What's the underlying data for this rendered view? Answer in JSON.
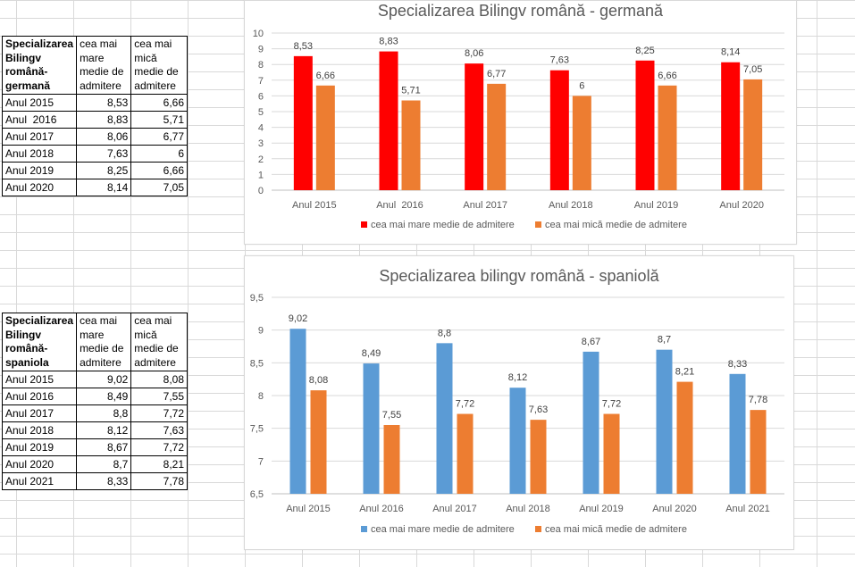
{
  "table_german": {
    "headers": [
      "Specializarea Bilingv română-germană",
      "cea mai mare medie de admitere",
      "cea mai mică medie de admitere"
    ],
    "rows": [
      [
        "Anul 2015",
        "8,53",
        "6,66"
      ],
      [
        "Anul  2016",
        "8,83",
        "5,71"
      ],
      [
        "Anul 2017",
        "8,06",
        "6,77"
      ],
      [
        "Anul 2018",
        "7,63",
        "6"
      ],
      [
        "Anul 2019",
        "8,25",
        "6,66"
      ],
      [
        "Anul 2020",
        "8,14",
        "7,05"
      ]
    ]
  },
  "table_spanish": {
    "headers": [
      "Specializarea Bilingv română-spaniola",
      "cea mai mare medie de admitere",
      "cea mai mică medie de admitere"
    ],
    "rows": [
      [
        "Anul 2015",
        "9,02",
        "8,08"
      ],
      [
        "Anul 2016",
        "8,49",
        "7,55"
      ],
      [
        "Anul 2017",
        "8,8",
        "7,72"
      ],
      [
        "Anul 2018",
        "8,12",
        "7,63"
      ],
      [
        "Anul 2019",
        "8,67",
        "7,72"
      ],
      [
        "Anul 2020",
        "8,7",
        "8,21"
      ],
      [
        "Anul 2021",
        "8,33",
        "7,78"
      ]
    ]
  },
  "chart_data": [
    {
      "type": "bar",
      "title": "Specializarea Bilingv română - germană",
      "categories": [
        "Anul 2015",
        "Anul  2016",
        "Anul 2017",
        "Anul 2018",
        "Anul 2019",
        "Anul 2020"
      ],
      "series": [
        {
          "name": "cea mai mare medie de admitere",
          "values": [
            8.53,
            8.83,
            8.06,
            7.63,
            8.25,
            8.14
          ],
          "labels": [
            "8,53",
            "8,83",
            "8,06",
            "7,63",
            "8,25",
            "8,14"
          ],
          "color": "#ff0000"
        },
        {
          "name": "cea mai mică medie de admitere",
          "values": [
            6.66,
            5.71,
            6.77,
            6,
            6.66,
            7.05
          ],
          "labels": [
            "6,66",
            "5,71",
            "6,77",
            "6",
            "6,66",
            "7,05"
          ],
          "color": "#ed7d31"
        }
      ],
      "ylim": [
        0,
        10
      ],
      "yticks": [
        0,
        1,
        2,
        3,
        4,
        5,
        6,
        7,
        8,
        9,
        10
      ],
      "ytick_labels": [
        "0",
        "1",
        "2",
        "3",
        "4",
        "5",
        "6",
        "7",
        "8",
        "9",
        "10"
      ],
      "grid": true,
      "legend": "bottom"
    },
    {
      "type": "bar",
      "title": "Specializarea bilingv română - spaniolă",
      "categories": [
        "Anul 2015",
        "Anul 2016",
        "Anul 2017",
        "Anul 2018",
        "Anul 2019",
        "Anul 2020",
        "Anul 2021"
      ],
      "series": [
        {
          "name": "cea mai mare medie de admitere",
          "values": [
            9.02,
            8.49,
            8.8,
            8.12,
            8.67,
            8.7,
            8.33
          ],
          "labels": [
            "9,02",
            "8,49",
            "8,8",
            "8,12",
            "8,67",
            "8,7",
            "8,33"
          ],
          "color": "#5b9bd5"
        },
        {
          "name": "cea mai mică medie de admitere",
          "values": [
            8.08,
            7.55,
            7.72,
            7.63,
            7.72,
            8.21,
            7.78
          ],
          "labels": [
            "8,08",
            "7,55",
            "7,72",
            "7,63",
            "7,72",
            "8,21",
            "7,78"
          ],
          "color": "#ed7d31"
        }
      ],
      "ylim": [
        6.5,
        9.5
      ],
      "yticks": [
        6.5,
        7,
        7.5,
        8,
        8.5,
        9,
        9.5
      ],
      "ytick_labels": [
        "6,5",
        "7",
        "7,5",
        "8",
        "8,5",
        "9",
        "9,5"
      ],
      "grid": true,
      "legend": "bottom"
    }
  ]
}
